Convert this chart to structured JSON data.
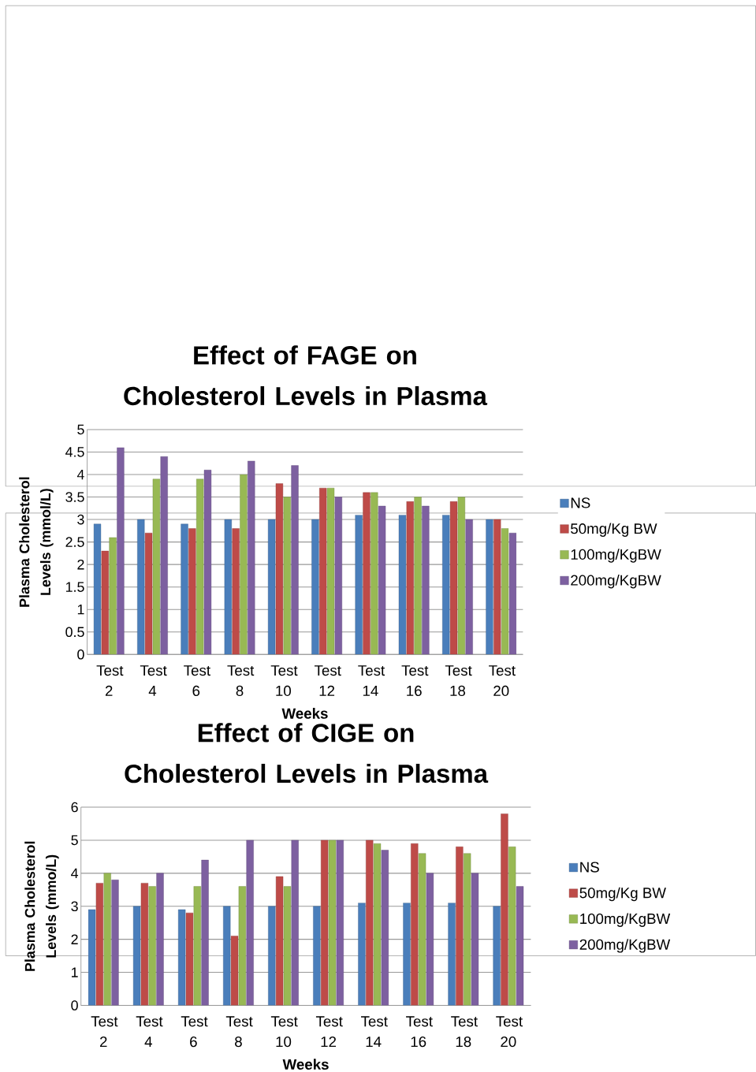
{
  "chart_data": [
    {
      "type": "bar",
      "title": "Effect of FAGE on Cholesterol Levels in Plasma",
      "xlabel": "Weeks",
      "ylabel": "Plasma Cholesterol Levels (mmol/L)",
      "categories": [
        "Test 2",
        "Test 4",
        "Test 6",
        "Test 8",
        "Test 10",
        "Test 12",
        "Test 14",
        "Test 16",
        "Test 18",
        "Test 20"
      ],
      "series": [
        {
          "name": "NS",
          "color": "#4a7ebb",
          "values": [
            2.9,
            3.0,
            2.9,
            3.0,
            3.0,
            3.0,
            3.1,
            3.1,
            3.1,
            3.0
          ]
        },
        {
          "name": "50mg/Kg BW",
          "color": "#be4b48",
          "values": [
            2.3,
            2.7,
            2.8,
            2.8,
            3.8,
            3.7,
            3.6,
            3.4,
            3.4,
            3.0
          ]
        },
        {
          "name": "100mg/KgBW",
          "color": "#98b954",
          "values": [
            2.6,
            3.9,
            3.9,
            4.0,
            3.5,
            3.7,
            3.6,
            3.5,
            3.5,
            2.8
          ]
        },
        {
          "name": "200mg/KgBW",
          "color": "#7d60a0",
          "values": [
            4.6,
            4.4,
            4.1,
            4.3,
            4.2,
            3.5,
            3.3,
            3.3,
            3.0,
            2.7
          ]
        }
      ],
      "ylim": [
        0,
        5
      ],
      "yticks": [
        0,
        0.5,
        1,
        1.5,
        2,
        2.5,
        3,
        3.5,
        4,
        4.5,
        5
      ],
      "grid": "y",
      "legend": "right"
    },
    {
      "type": "bar",
      "title": "Effect of CIGE on Cholesterol Levels in Plasma",
      "xlabel": "Weeks",
      "ylabel": "Plasma Cholesterol Levels (mmo/L)",
      "categories": [
        "Test 2",
        "Test 4",
        "Test 6",
        "Test 8",
        "Test 10",
        "Test 12",
        "Test 14",
        "Test 16",
        "Test 18",
        "Test 20"
      ],
      "series": [
        {
          "name": "NS",
          "color": "#4a7ebb",
          "values": [
            2.9,
            3.0,
            2.9,
            3.0,
            3.0,
            3.0,
            3.1,
            3.1,
            3.1,
            3.0
          ]
        },
        {
          "name": "50mg/Kg BW",
          "color": "#be4b48",
          "values": [
            3.7,
            3.7,
            2.8,
            2.1,
            3.9,
            5.0,
            5.0,
            4.9,
            4.8,
            5.8
          ]
        },
        {
          "name": "100mg/KgBW",
          "color": "#98b954",
          "values": [
            4.0,
            3.6,
            3.6,
            3.6,
            3.6,
            5.0,
            4.9,
            4.6,
            4.6,
            4.8
          ]
        },
        {
          "name": "200mg/KgBW",
          "color": "#7d60a0",
          "values": [
            3.8,
            4.0,
            4.4,
            5.0,
            5.0,
            5.0,
            4.7,
            4.0,
            4.0,
            3.6
          ]
        }
      ],
      "ylim": [
        0,
        6
      ],
      "yticks": [
        0,
        1,
        2,
        3,
        4,
        5,
        6
      ],
      "grid": "y",
      "legend": "right"
    }
  ]
}
